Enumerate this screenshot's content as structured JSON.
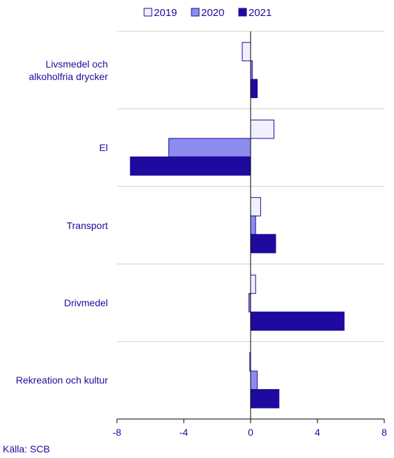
{
  "chart_data": {
    "type": "hbar",
    "categories": [
      "Livsmedel och\nalkoholfria drycker",
      "El",
      "Transport",
      "Drivmedel",
      "Rekreation och kultur"
    ],
    "series": [
      {
        "name": "2019",
        "color": "#f0f0ff",
        "values": [
          -0.5,
          1.4,
          0.6,
          0.3,
          -0.05
        ]
      },
      {
        "name": "2020",
        "color": "#8c8cf0",
        "values": [
          0.1,
          -4.9,
          0.3,
          -0.1,
          0.4
        ]
      },
      {
        "name": "2021",
        "color": "#1e0a9e",
        "values": [
          0.4,
          -7.2,
          1.5,
          5.6,
          1.7
        ]
      }
    ],
    "xlim": [
      -8,
      8
    ],
    "xticks": [
      -8,
      -4,
      0,
      4,
      8
    ],
    "grid": true,
    "legend": "top",
    "source": "Källa: SCB"
  }
}
